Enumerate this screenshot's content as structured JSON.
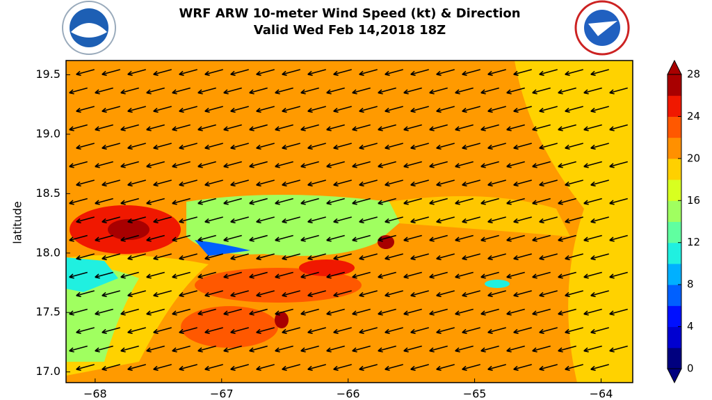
{
  "chart_data": {
    "type": "contour-map",
    "title": "WRF ARW 10-meter Wind Speed (kt) & Direction",
    "subtitle": "Valid Wed Feb 14,2018 18Z",
    "ylabel": "latitude",
    "xlim": [
      -68.23,
      -63.75
    ],
    "ylim": [
      16.91,
      19.62
    ],
    "xticks": [
      {
        "value": -68,
        "label": "−68"
      },
      {
        "value": -67,
        "label": "−67"
      },
      {
        "value": -66,
        "label": "−66"
      },
      {
        "value": -65,
        "label": "−65"
      },
      {
        "value": -64,
        "label": "−64"
      }
    ],
    "yticks": [
      {
        "value": 17,
        "label": "17.0"
      },
      {
        "value": 17.5,
        "label": "17.5"
      },
      {
        "value": 18,
        "label": "18.0"
      },
      {
        "value": 18.5,
        "label": "18.5"
      },
      {
        "value": 19,
        "label": "19.0"
      },
      {
        "value": 19.5,
        "label": "19.5"
      }
    ],
    "colorbar": {
      "lim": [
        0,
        28
      ],
      "ticks": [
        0,
        4,
        8,
        12,
        16,
        20,
        24,
        28
      ],
      "colors": [
        "#00007f",
        "#0000d0",
        "#0010ff",
        "#0060ff",
        "#00b0ff",
        "#20f0e0",
        "#60ffa0",
        "#a0ff60",
        "#d8ff20",
        "#ffd000",
        "#ff9000",
        "#ff5800",
        "#f01800",
        "#a80000"
      ]
    }
  }
}
